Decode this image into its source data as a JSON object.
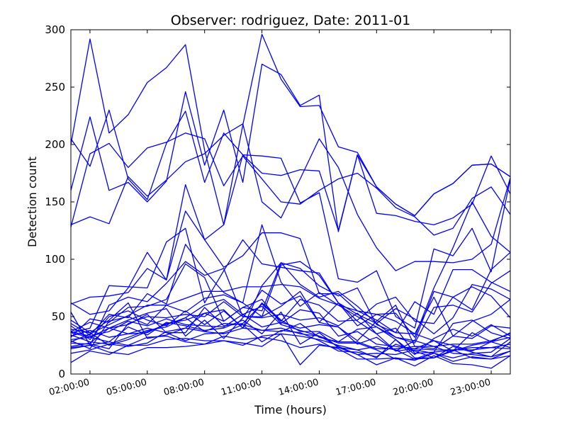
{
  "chart_data": {
    "type": "line",
    "title": "Observer: rodriguez, Date: 2011-01",
    "xlabel": "Time (hours)",
    "ylabel": "Detection count",
    "x": [
      "01:00:00",
      "02:00:00",
      "03:00:00",
      "04:00:00",
      "05:00:00",
      "06:00:00",
      "07:00:00",
      "08:00:00",
      "09:00:00",
      "10:00:00",
      "11:00:00",
      "12:00:00",
      "13:00:00",
      "14:00:00",
      "15:00:00",
      "16:00:00",
      "17:00:00",
      "18:00:00",
      "19:00:00",
      "20:00:00",
      "21:00:00",
      "22:00:00",
      "23:00:00",
      "00:00:00"
    ],
    "x_tick_labels": [
      "02:00:00",
      "05:00:00",
      "08:00:00",
      "11:00:00",
      "14:00:00",
      "17:00:00",
      "20:00:00",
      "23:00:00"
    ],
    "ylim": [
      0,
      300
    ],
    "y_ticks": [
      0,
      50,
      100,
      150,
      200,
      250,
      300
    ],
    "grid": false,
    "line_color": "#0000ff",
    "series": [
      {
        "values": [
          200,
          292,
          210,
          226,
          254,
          267,
          287,
          195,
          130,
          217,
          296,
          257,
          233,
          234,
          198,
          193,
          163,
          148,
          138,
          157,
          166,
          182,
          183,
          172
        ]
      },
      {
        "values": [
          160,
          224,
          160,
          167,
          150,
          168,
          246,
          182,
          230,
          167,
          270,
          261,
          234,
          243,
          124,
          191,
          163,
          148,
          138,
          157,
          166,
          182,
          183,
          172
        ]
      },
      {
        "values": [
          205,
          181,
          230,
          170,
          152,
          201,
          229,
          167,
          210,
          191,
          175,
          173,
          178,
          177,
          125,
          191,
          140,
          138,
          133,
          130,
          136,
          148,
          190,
          157
        ]
      },
      {
        "values": [
          128,
          192,
          201,
          180,
          197,
          202,
          210,
          205,
          164,
          190,
          170,
          150,
          148,
          160,
          170,
          175,
          162,
          145,
          137,
          121,
          127,
          153,
          163,
          139
        ]
      },
      {
        "values": [
          130,
          137,
          131,
          172,
          155,
          169,
          185,
          192,
          208,
          218,
          150,
          136,
          170,
          205,
          180,
          139,
          110,
          90,
          98,
          98,
          97,
          100,
          113,
          171
        ]
      },
      {
        "values": [
          62,
          52,
          55,
          75,
          106,
          82,
          165,
          117,
          130,
          191,
          190,
          188,
          149,
          158,
          83,
          80,
          90,
          50,
          40,
          109,
          103,
          127,
          89,
          170
        ]
      },
      {
        "values": [
          61,
          67,
          68,
          71,
          92,
          82,
          142,
          117,
          93,
          103,
          123,
          123,
          118,
          70,
          70,
          55,
          52,
          53,
          32,
          75,
          110,
          150,
          120,
          106
        ]
      },
      {
        "values": [
          36,
          40,
          77,
          76,
          75,
          115,
          127,
          62,
          90,
          117,
          96,
          93,
          90,
          88,
          62,
          46,
          35,
          20,
          29,
          72,
          67,
          56,
          91,
          106
        ]
      },
      {
        "values": [
          44,
          34,
          52,
          49,
          70,
          61,
          113,
          90,
          71,
          62,
          130,
          80,
          59,
          71,
          60,
          55,
          47,
          36,
          63,
          52,
          91,
          91,
          80,
          72
        ]
      },
      {
        "values": [
          54,
          25,
          60,
          67,
          63,
          79,
          98,
          86,
          92,
          50,
          50,
          95,
          98,
          86,
          62,
          52,
          44,
          32,
          27,
          58,
          60,
          54,
          79,
          90
        ]
      },
      {
        "values": [
          32,
          48,
          45,
          58,
          59,
          65,
          96,
          84,
          46,
          58,
          55,
          97,
          92,
          77,
          68,
          75,
          43,
          36,
          35,
          67,
          33,
          46,
          52,
          65
        ]
      },
      {
        "values": [
          28,
          35,
          43,
          51,
          60,
          60,
          66,
          72,
          72,
          76,
          76,
          78,
          76,
          66,
          60,
          50,
          41,
          32,
          29,
          24,
          26,
          26,
          29,
          35
        ]
      },
      {
        "values": [
          42,
          30,
          50,
          55,
          47,
          42,
          55,
          43,
          55,
          40,
          77,
          97,
          78,
          67,
          72,
          59,
          44,
          57,
          48,
          35,
          49,
          78,
          74,
          65
        ]
      },
      {
        "values": [
          36,
          32,
          40,
          43,
          52,
          36,
          36,
          58,
          42,
          44,
          61,
          46,
          65,
          60,
          46,
          47,
          61,
          67,
          46,
          44,
          67,
          76,
          68,
          49
        ]
      },
      {
        "values": [
          37,
          45,
          40,
          47,
          53,
          57,
          33,
          47,
          31,
          49,
          73,
          61,
          68,
          45,
          41,
          29,
          46,
          60,
          24,
          22,
          33,
          31,
          42,
          40
        ]
      },
      {
        "values": [
          39,
          36,
          47,
          62,
          31,
          34,
          40,
          53,
          56,
          40,
          62,
          47,
          37,
          37,
          28,
          39,
          41,
          30,
          17,
          31,
          39,
          33,
          43,
          33
        ]
      },
      {
        "values": [
          29,
          22,
          46,
          50,
          43,
          60,
          54,
          66,
          69,
          62,
          50,
          59,
          72,
          45,
          62,
          42,
          52,
          46,
          35,
          29,
          20,
          36,
          28,
          32
        ]
      },
      {
        "values": [
          27,
          26,
          22,
          44,
          50,
          49,
          52,
          50,
          63,
          50,
          49,
          52,
          47,
          49,
          42,
          53,
          35,
          40,
          18,
          19,
          44,
          47,
          36,
          31
        ]
      },
      {
        "values": [
          47,
          36,
          25,
          30,
          37,
          43,
          49,
          60,
          65,
          52,
          41,
          45,
          40,
          43,
          41,
          26,
          32,
          20,
          22,
          29,
          25,
          20,
          28,
          36
        ]
      },
      {
        "values": [
          33,
          38,
          32,
          35,
          36,
          44,
          47,
          53,
          46,
          58,
          65,
          44,
          56,
          53,
          33,
          37,
          26,
          24,
          22,
          21,
          21,
          21,
          23,
          22
        ]
      },
      {
        "values": [
          24,
          27,
          40,
          35,
          40,
          36,
          29,
          35,
          36,
          43,
          38,
          40,
          35,
          33,
          27,
          27,
          21,
          13,
          13,
          19,
          21,
          23,
          23,
          26
        ]
      },
      {
        "values": [
          37,
          33,
          37,
          46,
          42,
          48,
          43,
          42,
          41,
          52,
          59,
          43,
          38,
          33,
          24,
          17,
          18,
          17,
          21,
          18,
          14,
          18,
          19,
          31
        ]
      },
      {
        "values": [
          30,
          32,
          28,
          41,
          34,
          45,
          42,
          38,
          40,
          47,
          35,
          54,
          26,
          36,
          23,
          21,
          14,
          30,
          14,
          14,
          24,
          19,
          15,
          28
        ]
      },
      {
        "values": [
          34,
          28,
          26,
          32,
          38,
          41,
          49,
          37,
          44,
          43,
          28,
          38,
          36,
          29,
          20,
          19,
          15,
          26,
          20,
          14,
          20,
          25,
          28,
          23
        ]
      },
      {
        "values": [
          22,
          25,
          28,
          25,
          25,
          30,
          31,
          29,
          29,
          25,
          33,
          35,
          33,
          30,
          25,
          21,
          24,
          21,
          13,
          14,
          21,
          14,
          13,
          20
        ]
      },
      {
        "values": [
          18,
          21,
          26,
          24,
          27,
          37,
          40,
          37,
          35,
          40,
          38,
          37,
          44,
          32,
          28,
          28,
          22,
          22,
          24,
          24,
          18,
          17,
          15,
          20
        ]
      },
      {
        "values": [
          10,
          20,
          17,
          25,
          32,
          33,
          28,
          26,
          33,
          30,
          32,
          29,
          23,
          26,
          22,
          13,
          13,
          14,
          12,
          18,
          11,
          15,
          13,
          16
        ]
      },
      {
        "values": [
          23,
          25,
          19,
          17,
          23,
          23,
          24,
          26,
          29,
          27,
          24,
          35,
          8,
          25,
          23,
          17,
          8,
          14,
          7,
          16,
          9,
          8,
          5,
          16
        ]
      }
    ]
  }
}
